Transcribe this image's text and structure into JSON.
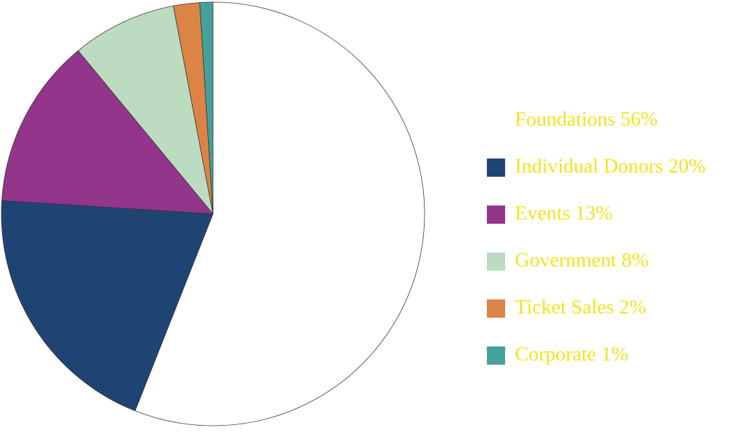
{
  "chart_data": {
    "type": "pie",
    "categories": [
      "Foundations",
      "Individual Donors",
      "Events",
      "Government",
      "Ticket Sales",
      "Corporate"
    ],
    "values": [
      56,
      20,
      13,
      8,
      2,
      1
    ],
    "value_labels": [
      "56%",
      "20%",
      "13%",
      "8%",
      "2%",
      "1%"
    ],
    "colors": [
      "#ffffff",
      "#1f4474",
      "#93358a",
      "#bddbc1",
      "#db8446",
      "#45a19a"
    ],
    "legend": "right"
  }
}
